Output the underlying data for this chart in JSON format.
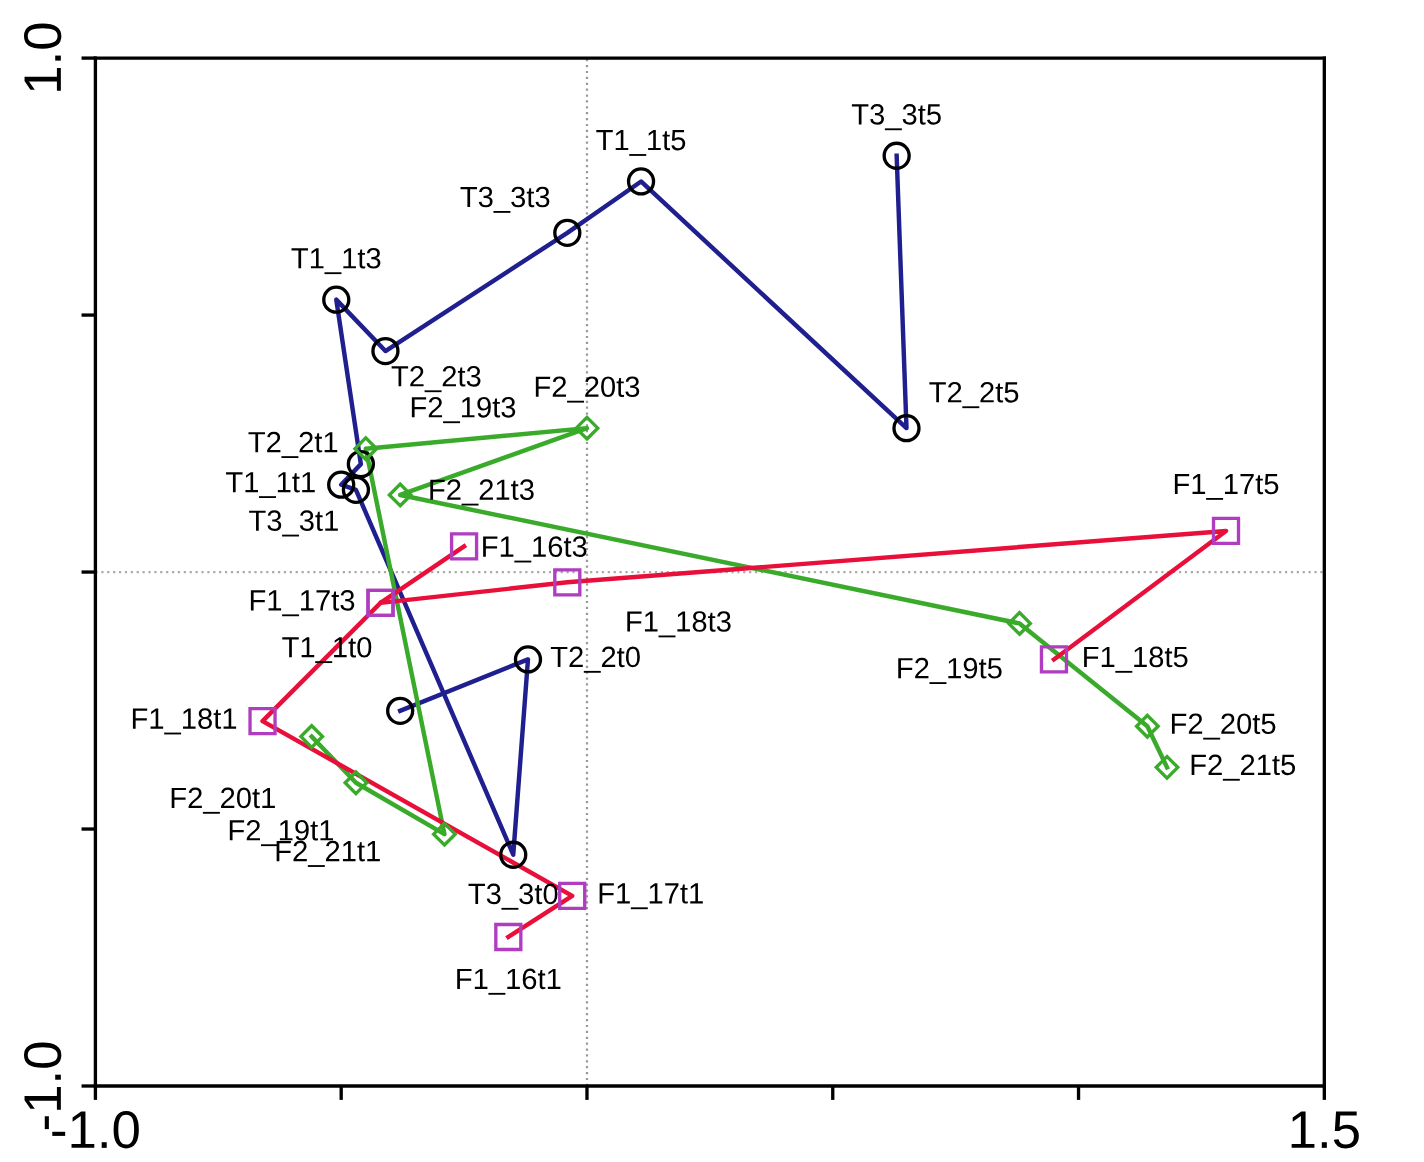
{
  "chart_data": {
    "type": "line",
    "xlim": [
      -1.0,
      1.5
    ],
    "ylim": [
      -1.0,
      1.0
    ],
    "xticks": [
      {
        "value": -1.0,
        "label": "-1.0"
      },
      {
        "value": -0.5,
        "label": null
      },
      {
        "value": 0,
        "label": null
      },
      {
        "value": 0.5,
        "label": null
      },
      {
        "value": 1.0,
        "label": null
      },
      {
        "value": 1.5,
        "label": "1.5"
      }
    ],
    "yticks": [
      {
        "value": -1.0,
        "label": "-1.0"
      },
      {
        "value": -0.5,
        "label": null
      },
      {
        "value": 0,
        "label": null
      },
      {
        "value": 0.5,
        "label": null
      },
      {
        "value": 1.0,
        "label": "1.0"
      }
    ],
    "grid": false,
    "legend": false,
    "ref_lines": [
      {
        "axis": "x",
        "value": 0,
        "color": "#999999",
        "line_style": "dotted"
      },
      {
        "axis": "y",
        "value": 0,
        "color": "#aaaaaa",
        "line_style": "dotted"
      }
    ],
    "series": [
      {
        "color": "#1f1f8f",
        "marker": "circle",
        "colors": [
          "#000000",
          "#000000",
          "#000000",
          "#000000",
          "#000000",
          "#000000",
          "#000000",
          "#000000",
          "#000000",
          "#000000",
          "#000000",
          "#000000"
        ],
        "x": [
          0.63,
          0.65,
          0.11,
          -0.04,
          -0.41,
          -0.51,
          -0.46,
          -0.5,
          -0.47,
          -0.15,
          -0.12,
          -0.38
        ],
        "values": [
          0.81,
          0.28,
          0.76,
          0.66,
          0.43,
          0.53,
          0.21,
          0.17,
          0.16,
          -0.55,
          -0.17,
          -0.27
        ]
      },
      {
        "color": "#3aaa2a",
        "marker": "diamond",
        "x": [
          1.18,
          1.14,
          0.88,
          -0.38,
          0.0,
          -0.45,
          -0.29,
          -0.47,
          -0.56
        ],
        "values": [
          -0.38,
          -0.3,
          -0.1,
          0.15,
          0.28,
          0.24,
          -0.51,
          -0.41,
          -0.32
        ]
      },
      {
        "color": "#e8103a",
        "marker": "square",
        "colors": [
          "#b03cc0",
          "#b03cc0",
          "#b03cc0",
          "#b03cc0",
          "#b03cc0"
        ],
        "x": [
          0.95,
          1.3,
          -0.04,
          -0.42,
          -0.25
        ],
        "values": [
          -0.17,
          0.08,
          -0.02,
          -0.06,
          0.05
        ]
      },
      {
        "color": "#e8103a",
        "marker": "square",
        "colors": [
          "#b03cc0",
          "#b03cc0",
          "#b03cc0",
          "#b03cc0"
        ],
        "x": [
          -0.42,
          -0.66,
          -0.03,
          -0.16
        ],
        "values": [
          -0.06,
          -0.29,
          -0.63,
          -0.71
        ]
      }
    ],
    "annotations": [
      {
        "text": "T3_3t5",
        "x": 0.63,
        "y": 0.81
      },
      {
        "text": "T2_2t5",
        "x": 0.65,
        "y": 0.28
      },
      {
        "text": "T1_1t5",
        "x": 0.11,
        "y": 0.76
      },
      {
        "text": "T3_3t3",
        "x": -0.04,
        "y": 0.66
      },
      {
        "text": "T2_2t3",
        "x": -0.41,
        "y": 0.43
      },
      {
        "text": "T1_1t3",
        "x": -0.51,
        "y": 0.53
      },
      {
        "text": "T2_2t1",
        "x": -0.46,
        "y": 0.21
      },
      {
        "text": "T1_1t1",
        "x": -0.5,
        "y": 0.17
      },
      {
        "text": "T3_3t1",
        "x": -0.47,
        "y": 0.16
      },
      {
        "text": "T3_3t0",
        "x": -0.15,
        "y": -0.55
      },
      {
        "text": "T2_2t0",
        "x": -0.12,
        "y": -0.17
      },
      {
        "text": "T1_1t0",
        "x": -0.38,
        "y": -0.27
      },
      {
        "text": "F2_21t5",
        "x": 1.18,
        "y": -0.38
      },
      {
        "text": "F2_20t5",
        "x": 1.14,
        "y": -0.3
      },
      {
        "text": "F2_19t5",
        "x": 0.88,
        "y": -0.1
      },
      {
        "text": "F2_21t3",
        "x": -0.38,
        "y": 0.15
      },
      {
        "text": "F2_20t3",
        "x": 0.0,
        "y": 0.28
      },
      {
        "text": "F2_19t3",
        "x": -0.45,
        "y": 0.24
      },
      {
        "text": "F2_21t1",
        "x": -0.29,
        "y": -0.51
      },
      {
        "text": "F2_19t1",
        "x": -0.47,
        "y": -0.41
      },
      {
        "text": "F2_20t1",
        "x": -0.56,
        "y": -0.32
      },
      {
        "text": "F1_18t5",
        "x": 0.95,
        "y": -0.17
      },
      {
        "text": "F1_17t5",
        "x": 1.3,
        "y": 0.08
      },
      {
        "text": "F1_18t3",
        "x": -0.04,
        "y": -0.02
      },
      {
        "text": "F1_17t3",
        "x": -0.42,
        "y": -0.06
      },
      {
        "text": "F1_16t3",
        "x": -0.25,
        "y": 0.05
      },
      {
        "text": "F1_18t1",
        "x": -0.66,
        "y": -0.29
      },
      {
        "text": "F1_17t1",
        "x": -0.03,
        "y": -0.63
      },
      {
        "text": "F1_16t1",
        "x": -0.16,
        "y": -0.71
      }
    ]
  }
}
